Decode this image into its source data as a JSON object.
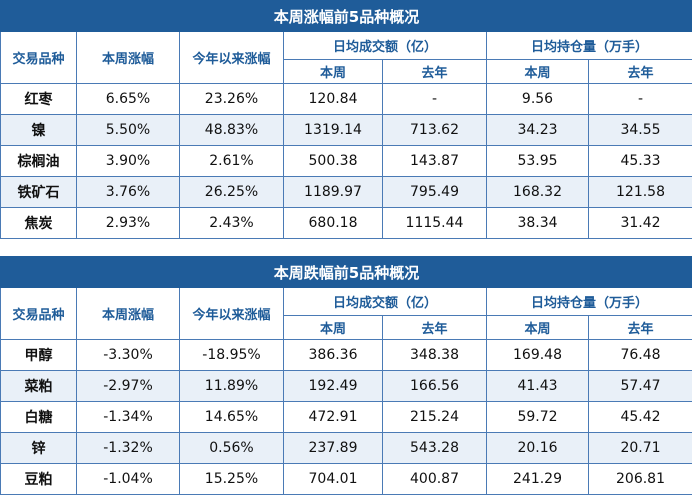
{
  "tables": [
    {
      "title": "本周涨幅前5品种概况",
      "headers": {
        "product": "交易品种",
        "weekly_change": "本周涨幅",
        "ytd_change": "今年以来涨幅",
        "avg_volume": "日均成交额（亿）",
        "avg_oi": "日均持仓量（万手）",
        "this_week": "本周",
        "last_year": "去年"
      },
      "rows": [
        {
          "name": "红枣",
          "weekly": "6.65%",
          "ytd": "23.26%",
          "vol_week": "120.84",
          "vol_year": "-",
          "oi_week": "9.56",
          "oi_year": "-"
        },
        {
          "name": "镍",
          "weekly": "5.50%",
          "ytd": "48.83%",
          "vol_week": "1319.14",
          "vol_year": "713.62",
          "oi_week": "34.23",
          "oi_year": "34.55"
        },
        {
          "name": "棕榈油",
          "weekly": "3.90%",
          "ytd": "2.61%",
          "vol_week": "500.38",
          "vol_year": "143.87",
          "oi_week": "53.95",
          "oi_year": "45.33"
        },
        {
          "name": "铁矿石",
          "weekly": "3.76%",
          "ytd": "26.25%",
          "vol_week": "1189.97",
          "vol_year": "795.49",
          "oi_week": "168.32",
          "oi_year": "121.58"
        },
        {
          "name": "焦炭",
          "weekly": "2.93%",
          "ytd": "2.43%",
          "vol_week": "680.18",
          "vol_year": "1115.44",
          "oi_week": "38.34",
          "oi_year": "31.42"
        }
      ]
    },
    {
      "title": "本周跌幅前5品种概况",
      "headers": {
        "product": "交易品种",
        "weekly_change": "本周涨幅",
        "ytd_change": "今年以来涨幅",
        "avg_volume": "日均成交额（亿）",
        "avg_oi": "日均持仓量（万手）",
        "this_week": "本周",
        "last_year": "去年"
      },
      "rows": [
        {
          "name": "甲醇",
          "weekly": "-3.30%",
          "ytd": "-18.95%",
          "vol_week": "386.36",
          "vol_year": "348.38",
          "oi_week": "169.48",
          "oi_year": "76.48"
        },
        {
          "name": "菜粕",
          "weekly": "-2.97%",
          "ytd": "11.89%",
          "vol_week": "192.49",
          "vol_year": "166.56",
          "oi_week": "41.43",
          "oi_year": "57.47"
        },
        {
          "name": "白糖",
          "weekly": "-1.34%",
          "ytd": "14.65%",
          "vol_week": "472.91",
          "vol_year": "215.24",
          "oi_week": "59.72",
          "oi_year": "45.42"
        },
        {
          "name": "锌",
          "weekly": "-1.32%",
          "ytd": "0.56%",
          "vol_week": "237.89",
          "vol_year": "543.28",
          "oi_week": "20.16",
          "oi_year": "20.71"
        },
        {
          "name": "豆粕",
          "weekly": "-1.04%",
          "ytd": "15.25%",
          "vol_week": "704.01",
          "vol_year": "400.87",
          "oi_week": "241.29",
          "oi_year": "206.81"
        }
      ]
    }
  ]
}
